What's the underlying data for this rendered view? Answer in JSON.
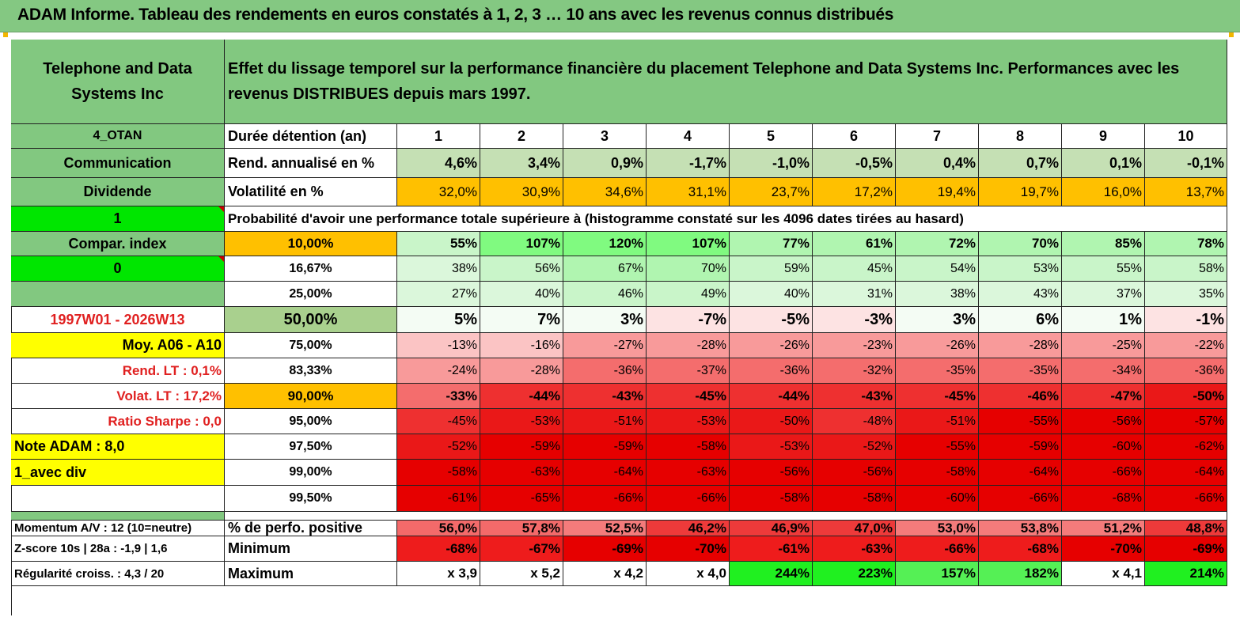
{
  "title": "ADAM Informe. Tableau des rendements en euros constatés à 1, 2, 3 … 10 ans avec les revenus connus distribués",
  "left": {
    "company": "Telephone and Data Systems Inc",
    "code": "4_OTAN",
    "sector": "Communication",
    "type": "Dividende",
    "flag1": "1",
    "compar": "Compar. index",
    "flag0": "0",
    "period": "1997W01 - 2026W13",
    "moy": "Moy. A06 - A10",
    "rend_lt": "Rend. LT :   0,1%",
    "volat_lt": "Volat. LT :   17,2%",
    "sharpe": "Ratio Sharpe :    0,0",
    "note": "Note ADAM : 8,0",
    "avec_div": "1_avec div",
    "momentum": "Momentum A/V : 12 (10=neutre)",
    "zscore": "Z-score 10s | 28a : -1,9 | 1,6",
    "regularite": "Régularité croiss. : 4,3 / 20"
  },
  "header": {
    "description": "Effet du lissage temporel sur la performance financière du placement Telephone and Data Systems Inc. Performances avec les revenus DISTRIBUES depuis mars 1997.",
    "duree_label": "Durée détention (an)",
    "years": [
      "1",
      "2",
      "3",
      "4",
      "5",
      "6",
      "7",
      "8",
      "9",
      "10"
    ],
    "rend_label": "Rend. annualisé en %",
    "rend": [
      "4,6%",
      "3,4%",
      "0,9%",
      "-1,7%",
      "-1,0%",
      "-0,5%",
      "0,4%",
      "0,7%",
      "0,1%",
      "-0,1%"
    ],
    "vol_label": "Volatilité en %",
    "vol": [
      "32,0%",
      "30,9%",
      "34,6%",
      "31,1%",
      "23,7%",
      "17,2%",
      "19,4%",
      "19,7%",
      "16,0%",
      "13,7%"
    ],
    "prob_label": "Probabilité d'avoir une performance totale supérieure à (histogramme constaté sur les 4096 dates tirées au hasard)"
  },
  "quantiles": [
    {
      "label": "10,00%",
      "values": [
        "55%",
        "107%",
        "120%",
        "107%",
        "77%",
        "61%",
        "72%",
        "70%",
        "85%",
        "78%"
      ]
    },
    {
      "label": "16,67%",
      "values": [
        "38%",
        "56%",
        "67%",
        "70%",
        "59%",
        "45%",
        "54%",
        "53%",
        "55%",
        "58%"
      ]
    },
    {
      "label": "25,00%",
      "values": [
        "27%",
        "40%",
        "46%",
        "49%",
        "40%",
        "31%",
        "38%",
        "43%",
        "37%",
        "35%"
      ]
    },
    {
      "label": "50,00%",
      "values": [
        "5%",
        "7%",
        "3%",
        "-7%",
        "-5%",
        "-3%",
        "3%",
        "6%",
        "1%",
        "-1%"
      ]
    },
    {
      "label": "75,00%",
      "values": [
        "-13%",
        "-16%",
        "-27%",
        "-28%",
        "-26%",
        "-23%",
        "-26%",
        "-28%",
        "-25%",
        "-22%"
      ]
    },
    {
      "label": "83,33%",
      "values": [
        "-24%",
        "-28%",
        "-36%",
        "-37%",
        "-36%",
        "-32%",
        "-35%",
        "-35%",
        "-34%",
        "-36%"
      ]
    },
    {
      "label": "90,00%",
      "values": [
        "-33%",
        "-44%",
        "-43%",
        "-45%",
        "-44%",
        "-43%",
        "-45%",
        "-46%",
        "-47%",
        "-50%"
      ]
    },
    {
      "label": "95,00%",
      "values": [
        "-45%",
        "-53%",
        "-51%",
        "-53%",
        "-50%",
        "-48%",
        "-51%",
        "-55%",
        "-56%",
        "-57%"
      ]
    },
    {
      "label": "97,50%",
      "values": [
        "-52%",
        "-59%",
        "-59%",
        "-58%",
        "-53%",
        "-52%",
        "-55%",
        "-59%",
        "-60%",
        "-62%"
      ]
    },
    {
      "label": "99,00%",
      "values": [
        "-58%",
        "-63%",
        "-64%",
        "-63%",
        "-56%",
        "-56%",
        "-58%",
        "-64%",
        "-66%",
        "-64%"
      ]
    },
    {
      "label": "99,50%",
      "values": [
        "-61%",
        "-65%",
        "-66%",
        "-66%",
        "-58%",
        "-58%",
        "-60%",
        "-66%",
        "-68%",
        "-66%"
      ]
    }
  ],
  "bottom": [
    {
      "label": "% de perfo. positive",
      "values": [
        "56,0%",
        "57,8%",
        "52,5%",
        "46,2%",
        "46,9%",
        "47,0%",
        "53,0%",
        "53,8%",
        "51,2%",
        "48,8%"
      ]
    },
    {
      "label": "Minimum",
      "values": [
        "-68%",
        "-67%",
        "-69%",
        "-70%",
        "-61%",
        "-63%",
        "-66%",
        "-68%",
        "-70%",
        "-69%"
      ]
    },
    {
      "label": "Maximum",
      "values": [
        "x 3,9",
        "x 5,2",
        "x 4,2",
        "x 4,0",
        "244%",
        "223%",
        "157%",
        "182%",
        "x 4,1",
        "214%"
      ]
    }
  ],
  "colors": {
    "header_green": "#82c880",
    "pale_green": "#c5e0b4",
    "orange": "#ffc000",
    "bright_green": "#00e600",
    "yellow": "#ffff00"
  }
}
